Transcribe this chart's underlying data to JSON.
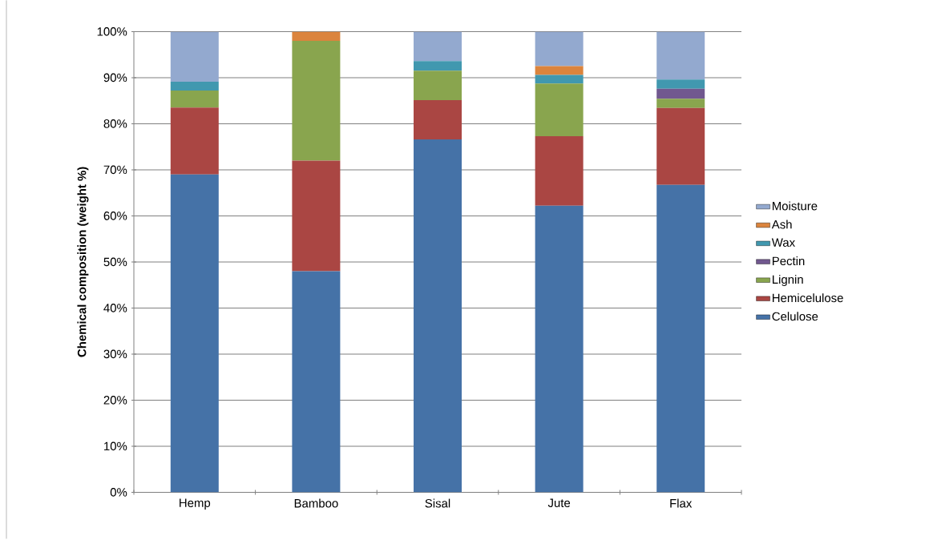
{
  "chart_data": {
    "type": "bar",
    "stacked": true,
    "ylabel": "Chemical composition (weight %)",
    "categories": [
      "Hemp",
      "Bamboo",
      "Sisal",
      "Jute",
      "Flax"
    ],
    "series": [
      {
        "name": "Celulose",
        "color": "#4572a7",
        "values": [
          69,
          48,
          76.6,
          62.2,
          66.7
        ]
      },
      {
        "name": "Hemicelulose",
        "color": "#aa4643",
        "values": [
          14.5,
          24,
          8.5,
          15.1,
          16.7
        ]
      },
      {
        "name": "Lignin",
        "color": "#89a54e",
        "values": [
          3.7,
          26,
          6.4,
          11.4,
          2.0
        ]
      },
      {
        "name": "Pectin",
        "color": "#71588f",
        "values": [
          0,
          0,
          0,
          0,
          2.2
        ]
      },
      {
        "name": "Wax",
        "color": "#4198af",
        "values": [
          1.9,
          0,
          2.1,
          1.9,
          2.0
        ]
      },
      {
        "name": "Ash",
        "color": "#db843d",
        "values": [
          0,
          2,
          0,
          1.9,
          0
        ]
      },
      {
        "name": "Moisture",
        "color": "#93a9cf",
        "values": [
          10.9,
          0,
          6.4,
          7.5,
          10.4
        ]
      }
    ],
    "ylim": [
      0,
      100
    ],
    "yticks": [
      {
        "value": 0,
        "label": "0%"
      },
      {
        "value": 10,
        "label": "10%"
      },
      {
        "value": 20,
        "label": "20%"
      },
      {
        "value": 30,
        "label": "30%"
      },
      {
        "value": 40,
        "label": "40%"
      },
      {
        "value": 50,
        "label": "50%"
      },
      {
        "value": 60,
        "label": "60%"
      },
      {
        "value": 70,
        "label": "70%"
      },
      {
        "value": 80,
        "label": "80%"
      },
      {
        "value": 90,
        "label": "90%"
      },
      {
        "value": 100,
        "label": "100%"
      }
    ],
    "grid": "y",
    "legend": "right"
  }
}
